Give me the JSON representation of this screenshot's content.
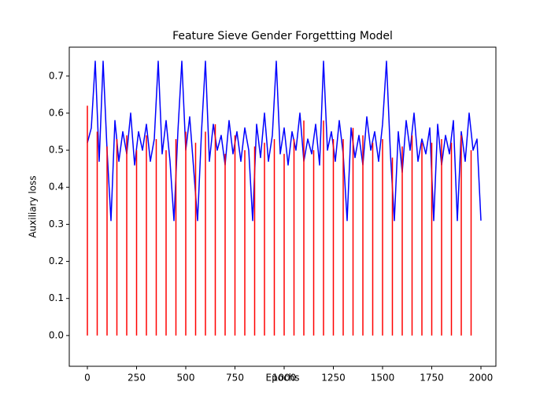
{
  "chart_data": {
    "type": "line",
    "title": "Feature Sieve Gender Forgettting Model",
    "xlabel": "Epochs",
    "ylabel": "Auxiliary loss",
    "xlim": [
      -92,
      2076
    ],
    "ylim": [
      -0.083,
      0.778
    ],
    "xticks": [
      0,
      250,
      500,
      750,
      1000,
      1250,
      1500,
      1750,
      2000
    ],
    "yticks": [
      {
        "value": 0,
        "label": "0.0"
      },
      0.1,
      0.2,
      0.3,
      0.4,
      0.5,
      0.6,
      0.7
    ],
    "grid": false,
    "series": [
      {
        "color": "#0000ff",
        "type": "line",
        "x": [
          0,
          20,
          40,
          60,
          80,
          100,
          120,
          140,
          160,
          180,
          200,
          220,
          240,
          260,
          280,
          300,
          320,
          340,
          360,
          380,
          400,
          420,
          440,
          460,
          480,
          500,
          520,
          540,
          560,
          580,
          600,
          620,
          640,
          660,
          680,
          700,
          720,
          740,
          760,
          780,
          800,
          820,
          840,
          860,
          880,
          900,
          920,
          940,
          960,
          980,
          1000,
          1020,
          1040,
          1060,
          1080,
          1100,
          1120,
          1140,
          1160,
          1180,
          1200,
          1220,
          1240,
          1260,
          1280,
          1300,
          1320,
          1340,
          1360,
          1380,
          1400,
          1420,
          1440,
          1460,
          1480,
          1500,
          1520,
          1540,
          1560,
          1580,
          1600,
          1620,
          1640,
          1660,
          1680,
          1700,
          1720,
          1740,
          1760,
          1780,
          1800,
          1820,
          1840,
          1860,
          1880,
          1900,
          1920,
          1940,
          1960,
          1980,
          2000
        ],
        "values": [
          0.52,
          0.56,
          0.74,
          0.47,
          0.74,
          0.5,
          0.31,
          0.58,
          0.47,
          0.55,
          0.49,
          0.6,
          0.46,
          0.55,
          0.5,
          0.57,
          0.47,
          0.53,
          0.74,
          0.49,
          0.58,
          0.47,
          0.31,
          0.55,
          0.74,
          0.5,
          0.59,
          0.45,
          0.31,
          0.55,
          0.74,
          0.47,
          0.57,
          0.5,
          0.54,
          0.46,
          0.58,
          0.49,
          0.55,
          0.47,
          0.56,
          0.5,
          0.31,
          0.57,
          0.48,
          0.6,
          0.47,
          0.54,
          0.74,
          0.49,
          0.56,
          0.46,
          0.55,
          0.5,
          0.6,
          0.47,
          0.53,
          0.49,
          0.57,
          0.46,
          0.74,
          0.5,
          0.55,
          0.47,
          0.58,
          0.49,
          0.31,
          0.56,
          0.48,
          0.54,
          0.46,
          0.59,
          0.5,
          0.55,
          0.47,
          0.57,
          0.74,
          0.49,
          0.31,
          0.55,
          0.44,
          0.58,
          0.5,
          0.6,
          0.47,
          0.53,
          0.49,
          0.56,
          0.31,
          0.57,
          0.46,
          0.54,
          0.49,
          0.58,
          0.31,
          0.55,
          0.47,
          0.6,
          0.5,
          0.53,
          0.31
        ]
      },
      {
        "color": "#ff0000",
        "type": "vlines",
        "x": [
          0,
          50,
          100,
          150,
          200,
          250,
          300,
          350,
          400,
          450,
          500,
          550,
          600,
          650,
          700,
          750,
          800,
          850,
          900,
          950,
          1000,
          1050,
          1100,
          1150,
          1200,
          1250,
          1300,
          1350,
          1400,
          1450,
          1500,
          1550,
          1600,
          1650,
          1700,
          1750,
          1800,
          1850,
          1900,
          1950
        ],
        "values": [
          0.62,
          0.55,
          0.51,
          0.53,
          0.54,
          0.5,
          0.54,
          0.53,
          0.5,
          0.53,
          0.55,
          0.52,
          0.55,
          0.57,
          0.49,
          0.54,
          0.5,
          0.51,
          0.52,
          0.53,
          0.49,
          0.53,
          0.58,
          0.5,
          0.58,
          0.53,
          0.53,
          0.56,
          0.54,
          0.52,
          0.53,
          0.48,
          0.51,
          0.54,
          0.52,
          0.52,
          0.53,
          0.52,
          0.54,
          0.5
        ]
      }
    ]
  }
}
